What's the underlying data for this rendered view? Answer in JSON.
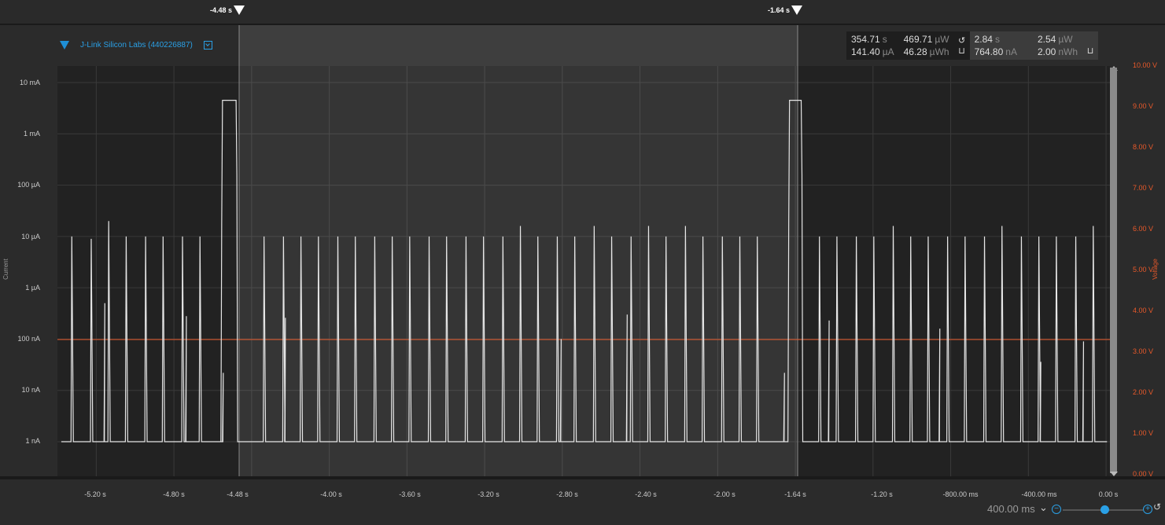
{
  "cursors": {
    "left_label": "-4.48 s",
    "right_label": "-1.64 s"
  },
  "device": {
    "name": "J-Link Silicon Labs (440226887)"
  },
  "stats": {
    "window": {
      "time": "354.71",
      "time_unit": "s",
      "current": "141.40",
      "current_unit": "µA",
      "power": "469.71",
      "power_unit": "µW",
      "energy": "46.28",
      "energy_unit": "µWh"
    },
    "selection": {
      "time": "2.84",
      "time_unit": "s",
      "current": "764.80",
      "current_unit": "nA",
      "power": "2.54",
      "power_unit": "µW",
      "energy": "2.00",
      "energy_unit": "nWh"
    },
    "reset_icon": "reset-icon",
    "export_icon": "export-icon"
  },
  "axes": {
    "current_label": "Current",
    "voltage_label": "Voltage",
    "current_ticks": [
      "10 mA",
      "1 mA",
      "100 µA",
      "10 µA",
      "1 µA",
      "100 nA",
      "10 nA",
      "1 nA"
    ],
    "voltage_ticks": [
      "10.00 V",
      "9.00 V",
      "8.00 V",
      "7.00 V",
      "6.00 V",
      "5.00 V",
      "4.00 V",
      "3.00 V",
      "2.00 V",
      "1.00 V",
      "0.00 V"
    ],
    "time_ticks": [
      "-5.20 s",
      "-4.80 s",
      "-4.48 s",
      "-4.00 s",
      "-3.60 s",
      "-3.20 s",
      "-2.80 s",
      "-2.40 s",
      "-2.00 s",
      "-1.64 s",
      "-1.20 s",
      "-800.00 ms",
      "-400.00 ms",
      "0.00 s"
    ]
  },
  "colors": {
    "current_trace": "#e6e6e6",
    "voltage_trace": "#e8592a",
    "accent": "#2aa0e6"
  },
  "chart_data": {
    "type": "line",
    "x_unit": "s",
    "x_range": [
      -5.4,
      0.02
    ],
    "y_scale": "log",
    "y_unit": "A",
    "y_range": [
      1e-09,
      0.01
    ],
    "selection": [
      -4.48,
      -1.64
    ],
    "voltage_level_V": 3.3,
    "baseline_A": 1e-09,
    "pulse_times_s": [
      -5.33,
      -5.23,
      -5.14,
      -5.05,
      -4.95,
      -4.86,
      -4.76,
      -4.67,
      -4.34,
      -4.24,
      -4.15,
      -4.06,
      -3.96,
      -3.87,
      -3.77,
      -3.68,
      -3.59,
      -3.49,
      -3.4,
      -3.3,
      -3.21,
      -3.11,
      -3.02,
      -2.93,
      -2.83,
      -2.74,
      -2.64,
      -2.55,
      -2.45,
      -2.36,
      -2.27,
      -2.17,
      -2.08,
      -1.98,
      -1.89,
      -1.8,
      -1.48,
      -1.39,
      -1.29,
      -1.2,
      -1.1,
      -1.01,
      -0.92,
      -0.82,
      -0.73,
      -0.63,
      -0.54,
      -0.44,
      -0.35,
      -0.26,
      -0.16,
      -0.07
    ],
    "pulse_peak_A": [
      1e-05,
      9e-06,
      2e-05,
      1e-05,
      1e-05,
      1e-05,
      1e-05,
      1e-05,
      1e-05,
      1e-05,
      1e-05,
      1e-05,
      1e-05,
      1e-05,
      1e-05,
      1e-05,
      1e-05,
      1e-05,
      1e-05,
      1e-05,
      1e-05,
      1e-05,
      1.6e-05,
      1e-05,
      1e-05,
      1e-05,
      1.6e-05,
      1e-05,
      1e-05,
      1.6e-05,
      1e-05,
      1.6e-05,
      1e-05,
      1e-05,
      1e-05,
      1e-05,
      1e-05,
      1e-05,
      1e-05,
      1e-05,
      1.6e-05,
      1e-05,
      1e-05,
      1e-05,
      1e-05,
      1e-05,
      1.6e-05,
      1e-05,
      1e-05,
      1e-05,
      1e-05,
      1.6e-05
    ],
    "spike_times_s": [
      -5.16,
      -4.74,
      -4.55,
      -4.23,
      -2.81,
      -2.47,
      -1.66,
      -1.43,
      -0.86,
      -0.34,
      -0.12
    ],
    "spike_peak_A": [
      5e-07,
      2.8e-07,
      2.2e-08,
      2.6e-07,
      1e-07,
      3e-07,
      2.2e-08,
      2.3e-07,
      1.6e-07,
      3.6e-08,
      9e-08
    ],
    "high_bursts": [
      {
        "start_s": -4.55,
        "end_s": -4.48,
        "peak_A": 0.0045
      },
      {
        "start_s": -1.63,
        "end_s": -1.57,
        "peak_A": 0.0045
      }
    ]
  },
  "zoom": {
    "label": "400.00 ms",
    "level_fraction": 0.5
  }
}
